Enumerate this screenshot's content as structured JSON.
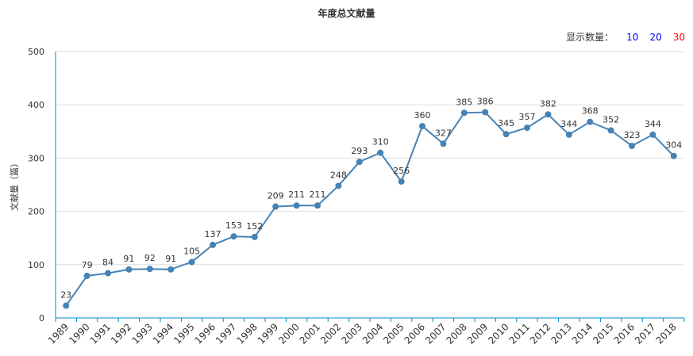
{
  "chart_data": {
    "type": "line",
    "title": "年度总文献量",
    "ylabel": "文献量（篇）",
    "xlabel": "",
    "ylim": [
      0,
      500
    ],
    "yticks": [
      0,
      100,
      200,
      300,
      400,
      500
    ],
    "grid": true,
    "legend": "none",
    "line_color": "#4682b4",
    "categories": [
      "1989",
      "1990",
      "1991",
      "1992",
      "1993",
      "1994",
      "1995",
      "1996",
      "1997",
      "1998",
      "1999",
      "2000",
      "2001",
      "2002",
      "2003",
      "2004",
      "2005",
      "2006",
      "2007",
      "2008",
      "2009",
      "2010",
      "2011",
      "2012",
      "2013",
      "2014",
      "2015",
      "2016",
      "2017",
      "2018"
    ],
    "values": [
      23,
      79,
      84,
      91,
      92,
      91,
      105,
      137,
      153,
      152,
      209,
      211,
      211,
      248,
      293,
      310,
      256,
      360,
      327,
      385,
      386,
      345,
      357,
      382,
      344,
      368,
      352,
      323,
      344,
      304
    ]
  },
  "display_count": {
    "label": "显示数量：",
    "options": [
      {
        "text": "10",
        "color": "#0000ff"
      },
      {
        "text": "20",
        "color": "#0000ff"
      },
      {
        "text": "30",
        "color": "#ff0000"
      }
    ]
  }
}
